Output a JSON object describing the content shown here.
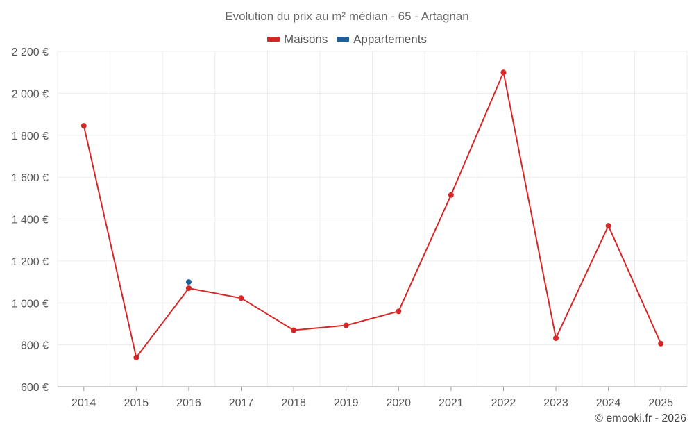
{
  "chart_data": {
    "type": "line",
    "title": "Evolution du prix au m² médian - 65 - Artagnan",
    "categories": [
      "2014",
      "2015",
      "2016",
      "2017",
      "2018",
      "2019",
      "2020",
      "2021",
      "2022",
      "2023",
      "2024",
      "2025"
    ],
    "ylim": [
      600,
      2200
    ],
    "yticks": [
      600,
      800,
      1000,
      1200,
      1400,
      1600,
      1800,
      2000,
      2200
    ],
    "ytick_labels": [
      "600 €",
      "800 €",
      "1 000 €",
      "1 200 €",
      "1 400 €",
      "1 600 €",
      "1 800 €",
      "2 000 €",
      "2 200 €"
    ],
    "grid": true,
    "legend_position": "top-center",
    "series": [
      {
        "name": "Maisons",
        "color": "#d62728",
        "values": [
          1845,
          740,
          1070,
          1023,
          870,
          893,
          960,
          1515,
          2100,
          832,
          1368,
          806
        ]
      },
      {
        "name": "Appartements",
        "color": "#1f5f99",
        "values": [
          null,
          null,
          1100,
          null,
          null,
          null,
          null,
          null,
          null,
          null,
          null,
          null
        ]
      }
    ]
  },
  "credit": "© emooki.fr - 2026"
}
